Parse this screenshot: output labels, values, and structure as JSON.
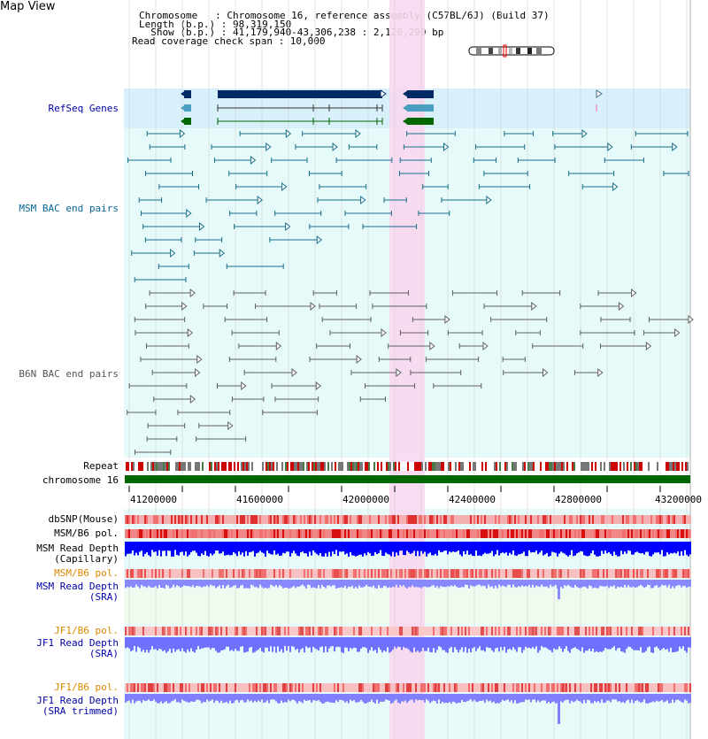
{
  "app": {
    "title": "Map View"
  },
  "header": {
    "chromosome_line": "Chromosome   : Chromosome 16, reference assembly (C57BL/6J) (Build 37)",
    "length_line": "Length (b.p.) : 98,319,150",
    "show_line": "  Show (b.p.) : 41,179,940-43,306,238 : 2,126,299 bp",
    "coverage_line": "Read coverage check span : 10,000"
  },
  "tracks": {
    "refseq": "RefSeq Genes",
    "msm_bac": "MSM BAC end pairs",
    "b6n_bac": "B6N BAC end pairs",
    "repeat": "Repeat",
    "chromosome": "chromosome 16",
    "dbsnp": "dbSNP(Mouse)",
    "msm_b6_pol_1": "MSM/B6 pol.",
    "msm_read_depth_cap_1": "MSM Read Depth",
    "msm_read_depth_cap_2": "(Capillary)",
    "msm_b6_pol_2": "MSM/B6 pol.",
    "msm_read_depth_sra_1": "MSM Read Depth",
    "msm_read_depth_sra_2": "(SRA)",
    "jf1_b6_pol_1": "JF1/B6 pol.",
    "jf1_read_depth_sra_1": "JF1 Read Depth",
    "jf1_read_depth_sra_2": "(SRA)",
    "jf1_b6_pol_2": "JF1/B6 pol.",
    "jf1_read_depth_trim_1": "JF1 Read Depth",
    "jf1_read_depth_trim_2": "(SRA trimmed)"
  },
  "axis": {
    "ticks": [
      "41200000",
      "41600000",
      "42000000",
      "42400000",
      "42800000",
      "43200000"
    ]
  },
  "colors": {
    "highlight": "#f8d8f0",
    "refseq_bg": "#d8f0fa",
    "navy_gene": "#002a66",
    "teal_gene": "#4a9ec0",
    "green_gene": "#006600",
    "msm_pair": "#1a6e8a",
    "b6n_pair": "#606060",
    "repeat_red": "#cc0000",
    "chrom_green": "#006600",
    "depth_blue": "#0000ff",
    "depth_light": "#7070ff"
  }
}
